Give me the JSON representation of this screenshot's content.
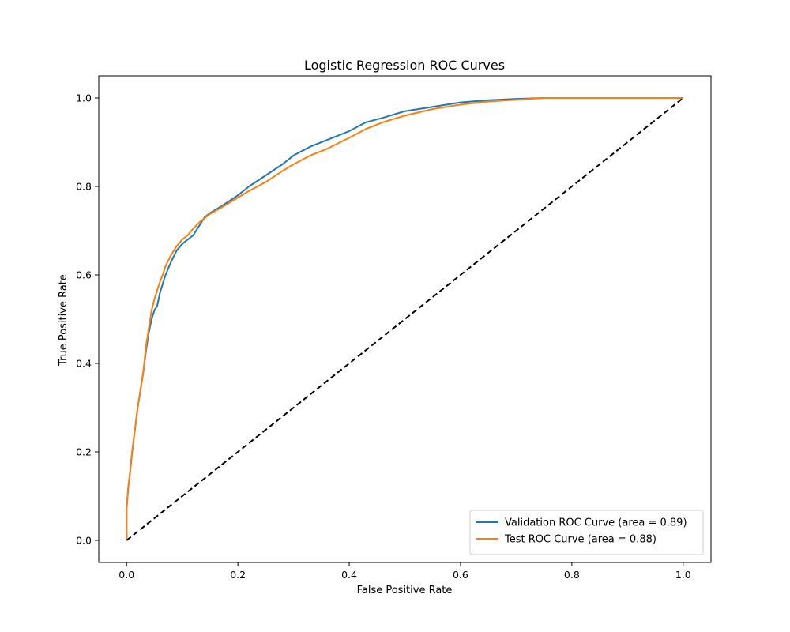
{
  "chart_data": {
    "type": "line",
    "title": "Logistic Regression ROC Curves",
    "xlabel": "False Positive Rate",
    "ylabel": "True Positive Rate",
    "xlim": [
      -0.05,
      1.05
    ],
    "ylim": [
      -0.05,
      1.05
    ],
    "xticks": [
      0.0,
      0.2,
      0.4,
      0.6,
      0.8,
      1.0
    ],
    "yticks": [
      0.0,
      0.2,
      0.4,
      0.6,
      0.8,
      1.0
    ],
    "xtick_labels": [
      "0.0",
      "0.2",
      "0.4",
      "0.6",
      "0.8",
      "1.0"
    ],
    "ytick_labels": [
      "0.0",
      "0.2",
      "0.4",
      "0.6",
      "0.8",
      "1.0"
    ],
    "grid": false,
    "legend_position": "lower-right",
    "series": [
      {
        "name": "Validation ROC Curve (area = 0.89)",
        "color": "#1f77b4",
        "x": [
          0.0,
          0.0,
          0.003,
          0.006,
          0.01,
          0.015,
          0.02,
          0.025,
          0.03,
          0.035,
          0.04,
          0.045,
          0.05,
          0.055,
          0.06,
          0.065,
          0.07,
          0.08,
          0.09,
          0.1,
          0.11,
          0.12,
          0.13,
          0.14,
          0.15,
          0.17,
          0.2,
          0.22,
          0.25,
          0.28,
          0.3,
          0.33,
          0.36,
          0.4,
          0.43,
          0.46,
          0.5,
          0.55,
          0.6,
          0.65,
          0.7,
          0.75,
          0.8,
          0.9,
          1.0
        ],
        "y": [
          0.0,
          0.07,
          0.12,
          0.15,
          0.2,
          0.25,
          0.3,
          0.34,
          0.38,
          0.43,
          0.47,
          0.5,
          0.52,
          0.53,
          0.56,
          0.58,
          0.6,
          0.63,
          0.655,
          0.67,
          0.68,
          0.69,
          0.71,
          0.73,
          0.74,
          0.755,
          0.78,
          0.8,
          0.825,
          0.85,
          0.87,
          0.89,
          0.905,
          0.925,
          0.945,
          0.955,
          0.97,
          0.98,
          0.99,
          0.995,
          0.998,
          1.0,
          1.0,
          1.0,
          1.0
        ]
      },
      {
        "name": "Test ROC Curve (area = 0.88)",
        "color": "#ff7f0e",
        "x": [
          0.0,
          0.0,
          0.003,
          0.006,
          0.01,
          0.015,
          0.02,
          0.025,
          0.03,
          0.035,
          0.04,
          0.045,
          0.05,
          0.055,
          0.06,
          0.065,
          0.07,
          0.08,
          0.09,
          0.1,
          0.11,
          0.12,
          0.13,
          0.14,
          0.15,
          0.17,
          0.2,
          0.22,
          0.25,
          0.28,
          0.3,
          0.33,
          0.36,
          0.4,
          0.43,
          0.46,
          0.5,
          0.55,
          0.6,
          0.65,
          0.7,
          0.75,
          0.8,
          0.9,
          1.0
        ],
        "y": [
          0.0,
          0.07,
          0.12,
          0.15,
          0.2,
          0.25,
          0.3,
          0.34,
          0.38,
          0.44,
          0.48,
          0.52,
          0.545,
          0.565,
          0.585,
          0.6,
          0.62,
          0.645,
          0.665,
          0.68,
          0.69,
          0.705,
          0.718,
          0.728,
          0.738,
          0.752,
          0.775,
          0.79,
          0.81,
          0.835,
          0.85,
          0.87,
          0.885,
          0.91,
          0.93,
          0.945,
          0.96,
          0.975,
          0.985,
          0.992,
          0.996,
          1.0,
          1.0,
          1.0,
          1.0
        ]
      },
      {
        "name": "",
        "color": "#000000",
        "style": "dashed",
        "x": [
          0.0,
          1.0
        ],
        "y": [
          0.0,
          1.0
        ]
      }
    ]
  }
}
